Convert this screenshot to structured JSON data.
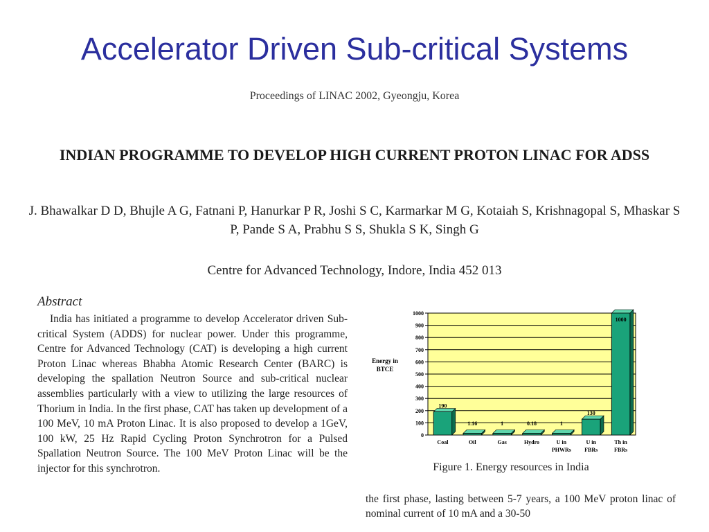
{
  "slide": {
    "title": "Accelerator Driven Sub-critical Systems"
  },
  "paper": {
    "proceedings": "Proceedings of LINAC 2002, Gyeongju, Korea",
    "title": "INDIAN PROGRAMME TO DEVELOP HIGH CURRENT PROTON LINAC FOR ADSS",
    "authors": "J. Bhawalkar D D, Bhujle A G, Fatnani P, Hanurkar P R, Joshi S C, Karmarkar M G, Kotaiah S, Krishnagopal S, Mhaskar S P, Pande S A, Prabhu S S, Shukla S K, Singh G",
    "affiliation": "Centre for Advanced Technology, Indore, India 452 013",
    "abstract_heading": "Abstract",
    "abstract_text": "India has initiated a programme to develop Accelerator driven Sub-critical System (ADDS) for nuclear power. Under this programme, Centre for Advanced Technology (CAT) is developing a high current Proton Linac whereas Bhabha Atomic Research Center (BARC) is developing the spallation Neutron Source and sub-critical nuclear assemblies particularly with a view to utilizing the large resources of Thorium in India. In the first phase, CAT has taken up development of a 100 MeV, 10 mA Proton Linac. It is also proposed to develop a 1GeV, 100 kW, 25 Hz Rapid Cycling Proton Synchrotron for a Pulsed Spallation Neutron Source. The 100 MeV Proton Linac will be the injector for this synchrotron.",
    "figure_caption": "Figure 1. Energy resources in India",
    "continuation_text": "the first phase, lasting between 5-7 years, a 100 MeV proton linac of nominal current of 10 mA and a 30-50"
  },
  "chart_data": {
    "type": "bar",
    "ylabel": "Energy in BTCE",
    "ylim": [
      0,
      1000
    ],
    "yticks": [
      "0",
      "100",
      "200",
      "300",
      "400",
      "500",
      "600",
      "700",
      "800",
      "900",
      "1000"
    ],
    "categories": [
      [
        "Coal"
      ],
      [
        "Oil"
      ],
      [
        "Gas"
      ],
      [
        "Hydro"
      ],
      [
        "U in",
        "PHWRs"
      ],
      [
        "U in",
        "FBRs"
      ],
      [
        "Th in",
        "FBRs"
      ]
    ],
    "values": [
      190,
      1.16,
      1,
      0.18,
      1,
      130,
      1000
    ],
    "data_labels": [
      "190",
      "1.16",
      "1",
      "0.18",
      "1",
      "130",
      "1000"
    ],
    "grid": true,
    "colors": {
      "plot_background": "#ffff99",
      "bar": "#1aa37a",
      "bar_dark": "#0d6b4e",
      "gridline": "#000000"
    }
  }
}
